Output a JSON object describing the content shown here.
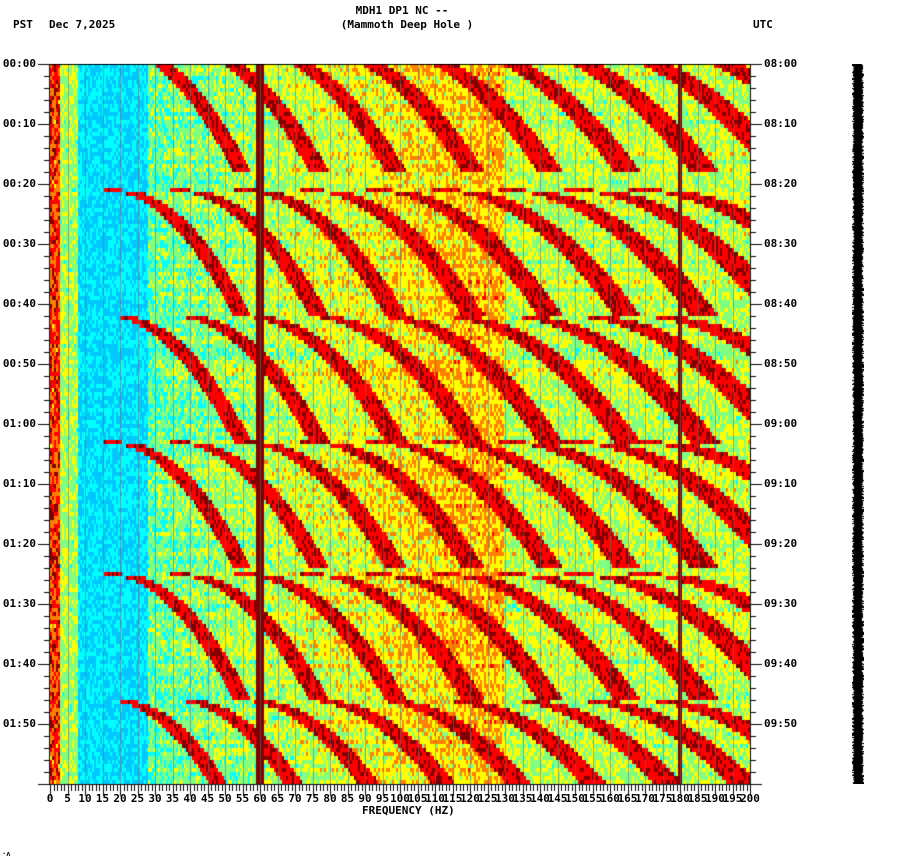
{
  "header": {
    "station_line": "MDH1 DP1 NC --",
    "location_line": "(Mammoth Deep Hole )",
    "left_timezone": "PST",
    "date": "Dec 7,2025",
    "right_timezone": "UTC"
  },
  "footer_mark": "·ʌ",
  "colors": {
    "background": "#ffffff",
    "axis": "#000000",
    "strip": "#000000",
    "colormap": [
      "#0080ff",
      "#00c8ff",
      "#00ffff",
      "#80ff80",
      "#ffff00",
      "#ff8000",
      "#ff0000",
      "#800000"
    ]
  },
  "chart_data": {
    "type": "heatmap",
    "title": "MDH1 DP1 NC -- (Mammoth Deep Hole )",
    "subtitle": "Spectrogram, Dec 7,2025",
    "xlabel": "FREQUENCY (HZ)",
    "ylabel_left": "PST",
    "ylabel_right": "UTC",
    "xlim": [
      0,
      200
    ],
    "x_ticks": [
      0,
      5,
      10,
      15,
      20,
      25,
      30,
      35,
      40,
      45,
      50,
      55,
      60,
      65,
      70,
      75,
      80,
      85,
      90,
      95,
      100,
      105,
      110,
      115,
      120,
      125,
      130,
      135,
      140,
      145,
      150,
      155,
      160,
      165,
      170,
      175,
      180,
      185,
      190,
      195,
      200
    ],
    "y_ticks_left": [
      "00:00",
      "00:10",
      "00:20",
      "00:30",
      "00:40",
      "00:50",
      "01:00",
      "01:10",
      "01:20",
      "01:30",
      "01:40",
      "01:50"
    ],
    "y_ticks_right": [
      "08:00",
      "08:10",
      "08:20",
      "08:30",
      "08:40",
      "08:50",
      "09:00",
      "09:10",
      "09:20",
      "09:30",
      "09:40",
      "09:50"
    ],
    "time_span_minutes": 120,
    "minor_tick_minutes": 2,
    "features": {
      "persistent_line_hz": 60,
      "secondary_line_hz": 180,
      "low_freq_band_hz": [
        0,
        3
      ],
      "quiet_band_hz": [
        5,
        25
      ],
      "sweep_cycle_minutes": 20.5,
      "sweep_start_minutes": [
        -3,
        21,
        42,
        63,
        85,
        106
      ],
      "sweep_harmonics_count": 9
    },
    "grid": true,
    "colorbar": "none"
  }
}
